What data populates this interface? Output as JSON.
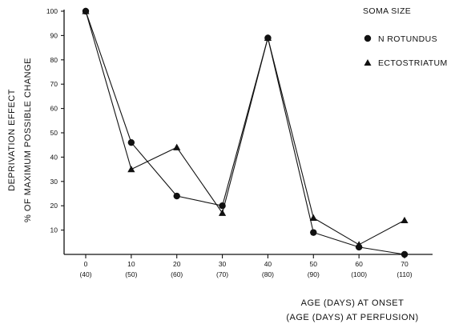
{
  "chart_data": {
    "type": "line",
    "title": "",
    "legend": {
      "title": "SOMA SIZE",
      "placement": "top-right"
    },
    "xlabel": "AGE (DAYS) AT ONSET",
    "xlabel_secondary": "(AGE (DAYS) AT PERFUSION)",
    "ylabel": "DEPRIVATION EFFECT",
    "ylabel_secondary": "% OF MAXIMUM POSSIBLE CHANGE",
    "x": [
      0,
      10,
      20,
      30,
      40,
      50,
      60,
      70
    ],
    "x_tick_labels": [
      "0",
      "10",
      "20",
      "30",
      "40",
      "50",
      "60",
      "70"
    ],
    "x_tick_labels_secondary": [
      "(40)",
      "(50)",
      "(60)",
      "(70)",
      "(80)",
      "(90)",
      "(100)",
      "(110)"
    ],
    "y_ticks": [
      10,
      20,
      30,
      40,
      50,
      60,
      70,
      80,
      90,
      100
    ],
    "xlim": [
      0,
      70
    ],
    "ylim": [
      0,
      100
    ],
    "grid": false,
    "series": [
      {
        "name": "N ROTUNDUS",
        "marker": "circle",
        "color": "#111111",
        "values": [
          100,
          46,
          24,
          20,
          89,
          9,
          3,
          0
        ]
      },
      {
        "name": "ECTOSTRIATUM",
        "marker": "triangle",
        "color": "#111111",
        "values": [
          100,
          35,
          44,
          17,
          89,
          15,
          4,
          14
        ]
      }
    ]
  }
}
